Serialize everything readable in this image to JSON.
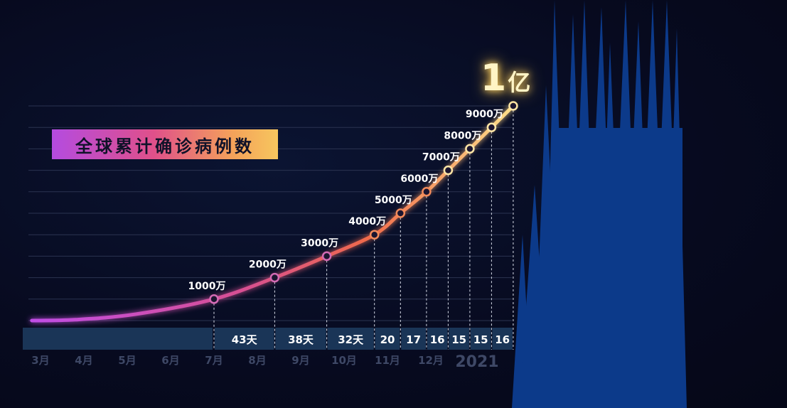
{
  "title": "全球累计确诊病例数",
  "headline": {
    "number": "1",
    "unit": "亿"
  },
  "colors": {
    "line_start": "#c04ee6",
    "line_mid": "#f06a4a",
    "line_end": "#ffe08a",
    "band": "#1a3557",
    "bars": "#0c3a8a"
  },
  "chart_data": {
    "type": "line",
    "title": "全球累计确诊病例数",
    "x_ticks": [
      "3月",
      "4月",
      "5月",
      "6月",
      "7月",
      "8月",
      "9月",
      "10月",
      "11月",
      "12月",
      "2021"
    ],
    "unit": "万",
    "milestones": [
      {
        "label": "1000万",
        "value": 1000,
        "tick": 4.0
      },
      {
        "label": "2000万",
        "value": 2000,
        "tick": 5.4
      },
      {
        "label": "3000万",
        "value": 3000,
        "tick": 6.6
      },
      {
        "label": "4000万",
        "value": 4000,
        "tick": 7.7
      },
      {
        "label": "5000万",
        "value": 5000,
        "tick": 8.3
      },
      {
        "label": "6000万",
        "value": 6000,
        "tick": 8.9
      },
      {
        "label": "7000万",
        "value": 7000,
        "tick": 9.4
      },
      {
        "label": "8000万",
        "value": 8000,
        "tick": 9.9
      },
      {
        "label": "9000万",
        "value": 9000,
        "tick": 10.4
      },
      {
        "label": "",
        "value": 10000,
        "tick": 10.9
      }
    ],
    "start_point": {
      "tick": -0.2,
      "value": 0
    },
    "intervals": [
      "43天",
      "38天",
      "32天",
      "20",
      "17",
      "16",
      "15",
      "15",
      "16"
    ],
    "ylim": [
      0,
      10000
    ],
    "grid": true
  }
}
